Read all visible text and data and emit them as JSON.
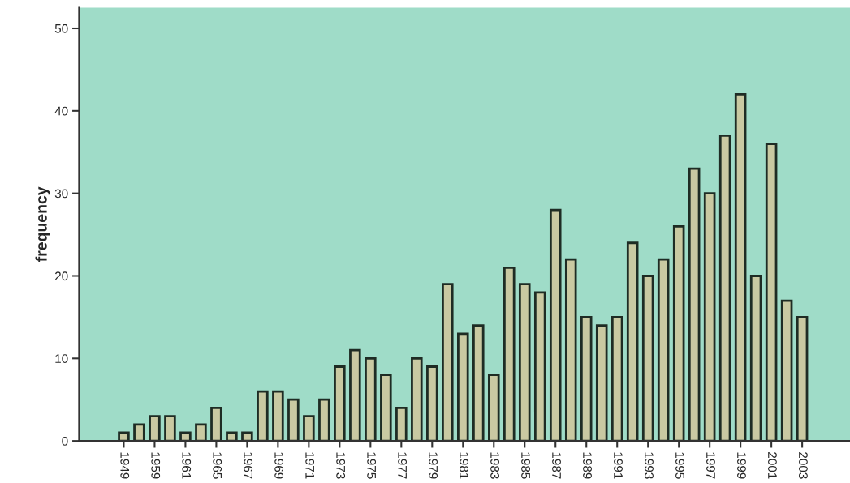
{
  "chart_data": {
    "type": "bar",
    "ylabel": "frequency",
    "categories": [
      "1949",
      null,
      "1959",
      null,
      "1961",
      null,
      "1965",
      null,
      "1967",
      null,
      "1969",
      null,
      "1971",
      null,
      "1973",
      null,
      "1975",
      null,
      "1977",
      null,
      "1979",
      null,
      "1981",
      null,
      "1983",
      null,
      "1985",
      null,
      "1987",
      null,
      "1989",
      null,
      "1991",
      null,
      "1993",
      null,
      "1995",
      null,
      "1997",
      null,
      "1999",
      null,
      "2001",
      null,
      "2003"
    ],
    "values": [
      1,
      2,
      3,
      3,
      1,
      2,
      4,
      1,
      1,
      6,
      6,
      5,
      3,
      5,
      9,
      11,
      10,
      8,
      4,
      10,
      9,
      19,
      13,
      14,
      8,
      21,
      19,
      18,
      28,
      22,
      15,
      14,
      15,
      24,
      20,
      22,
      26,
      33,
      30,
      37,
      42,
      20,
      36,
      17,
      15
    ],
    "color": "#c9c9a2",
    "ylim": [
      0,
      52.5
    ],
    "yticks": [
      0,
      10,
      20,
      30,
      40,
      50
    ],
    "grid": false
  }
}
